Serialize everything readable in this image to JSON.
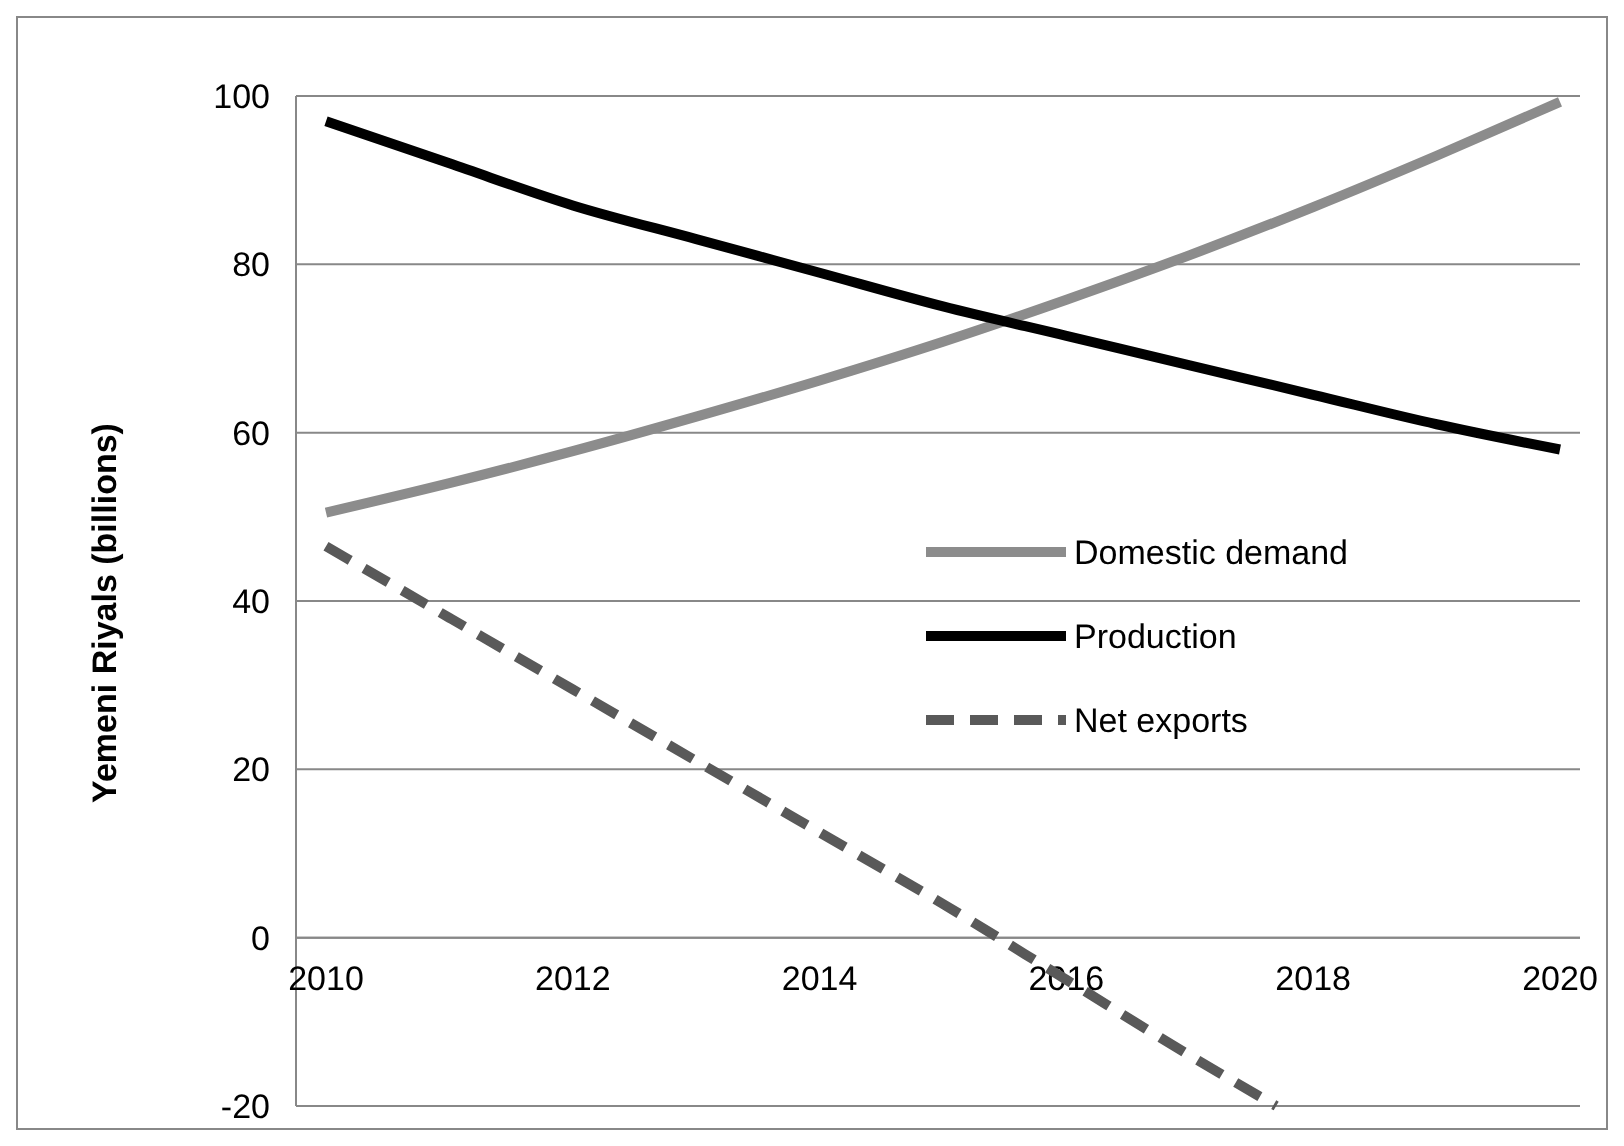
{
  "chart_data": {
    "type": "line",
    "ylabel": "Yemeni Riyals (billions)",
    "x": [
      2010,
      2011,
      2012,
      2013,
      2014,
      2015,
      2016,
      2017,
      2018,
      2019,
      2020
    ],
    "series": [
      {
        "name": "Domestic demand",
        "color": "#8c8c8c",
        "values": [
          50.5,
          54,
          57.8,
          61.9,
          66.2,
          70.8,
          75.8,
          81.1,
          86.8,
          92.9,
          99.3
        ]
      },
      {
        "name": "Production",
        "color": "#000000",
        "values": [
          97,
          92,
          87,
          83,
          79,
          75,
          71.5,
          68,
          64.5,
          61,
          58
        ]
      },
      {
        "name": "Net exports",
        "color": "#595959",
        "line_style": "dashed",
        "x": [
          2010,
          2011,
          2012,
          2013,
          2014,
          2015,
          2016,
          2017,
          2017.7
        ],
        "values": [
          46.5,
          38,
          29.5,
          21,
          12.5,
          4,
          -5,
          -14,
          -20
        ]
      }
    ],
    "xlim": [
      2010,
      2020
    ],
    "xticks": [
      2010,
      2012,
      2014,
      2016,
      2018,
      2020
    ],
    "ylim": [
      -20,
      100
    ],
    "yticks": [
      -20,
      0,
      20,
      40,
      60,
      80,
      100
    ],
    "grid": "y",
    "legend": "right",
    "line_style": "solid"
  }
}
